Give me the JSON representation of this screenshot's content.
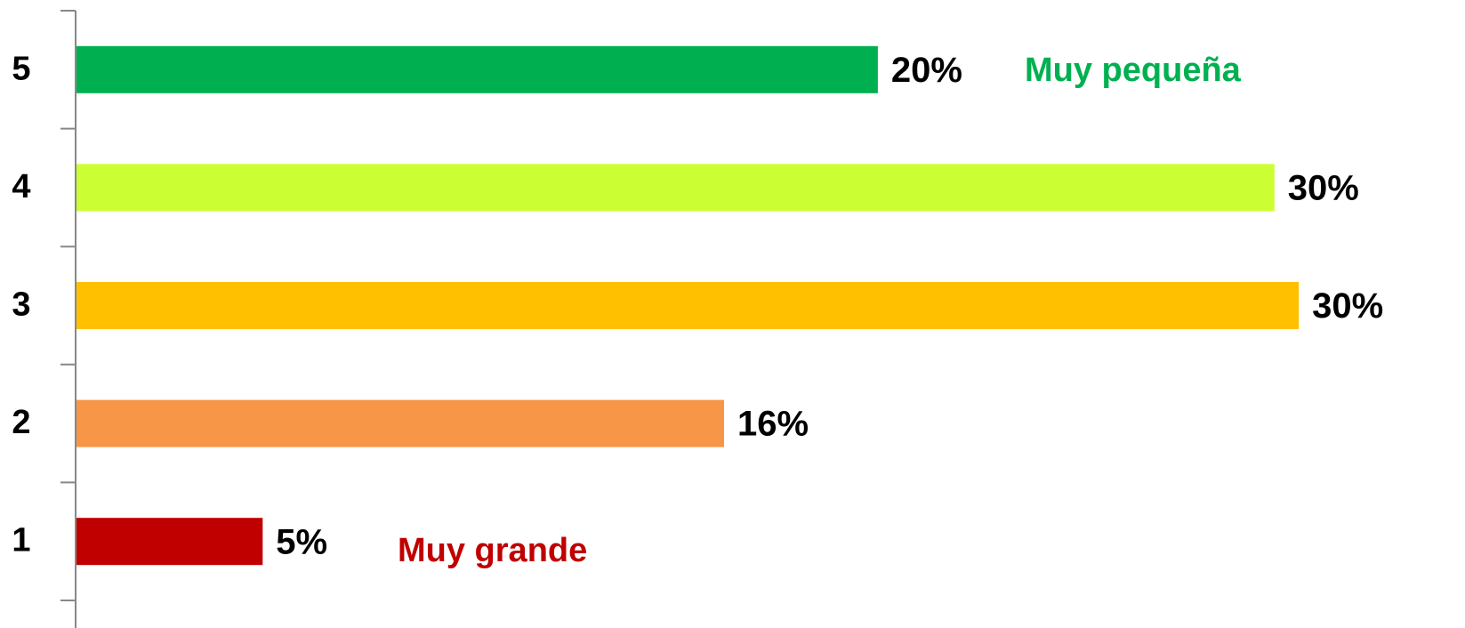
{
  "chart_data": {
    "type": "barh",
    "categories": [
      "5",
      "4",
      "3",
      "2",
      "1"
    ],
    "values": [
      19.8,
      29.6,
      30.2,
      16.0,
      4.6
    ],
    "value_labels": [
      "20%",
      "30%",
      "30%",
      "16%",
      "5%"
    ],
    "colors": [
      "#00b050",
      "#ccff33",
      "#ffc000",
      "#f79646",
      "#c00000"
    ],
    "xlim": [
      0,
      34
    ],
    "annotations": [
      {
        "text": "Muy pequeña",
        "color": "#00b050"
      },
      {
        "text": "Muy grande",
        "color": "#c00000"
      }
    ]
  }
}
